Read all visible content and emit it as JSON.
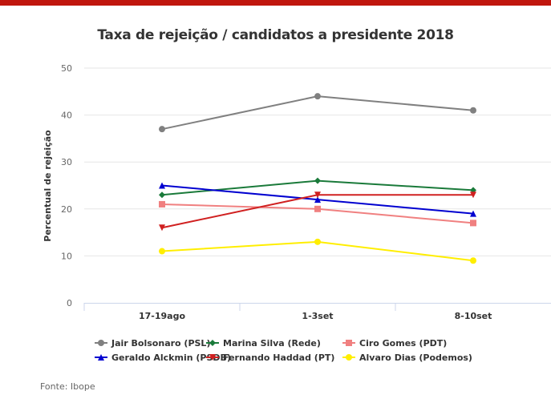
{
  "header": {
    "bar_color": "#c0160e"
  },
  "source": "Fonte: Ibope",
  "chart_data": {
    "type": "line",
    "title": "Taxa de rejeição / candidatos a presidente 2018",
    "xlabel": "",
    "ylabel": "Percentual de rejeição",
    "categories": [
      "17-19ago",
      "1-3set",
      "8-10set"
    ],
    "ylim": [
      0,
      50
    ],
    "yticks": [
      0,
      10,
      20,
      30,
      40,
      50
    ],
    "grid": true,
    "legend_position": "bottom",
    "series": [
      {
        "name": "Jair Bolsonaro (PSL)",
        "color": "#808080",
        "marker": "circle",
        "values": [
          37,
          44,
          41
        ]
      },
      {
        "name": "Marina Silva (Rede)",
        "color": "#1a7a3a",
        "marker": "diamond",
        "values": [
          23,
          26,
          24
        ]
      },
      {
        "name": "Ciro Gomes (PDT)",
        "color": "#f08080",
        "marker": "square",
        "values": [
          21,
          20,
          17
        ]
      },
      {
        "name": "Geraldo Alckmin (PSDB)",
        "color": "#0000d0",
        "marker": "triangle",
        "values": [
          25,
          22,
          19
        ]
      },
      {
        "name": "Fernando Haddad (PT)",
        "color": "#d02020",
        "marker": "triangle-down",
        "values": [
          16,
          23,
          23
        ]
      },
      {
        "name": "Alvaro Dias (Podemos)",
        "color": "#ffee00",
        "marker": "circle",
        "values": [
          11,
          13,
          9
        ]
      }
    ]
  }
}
